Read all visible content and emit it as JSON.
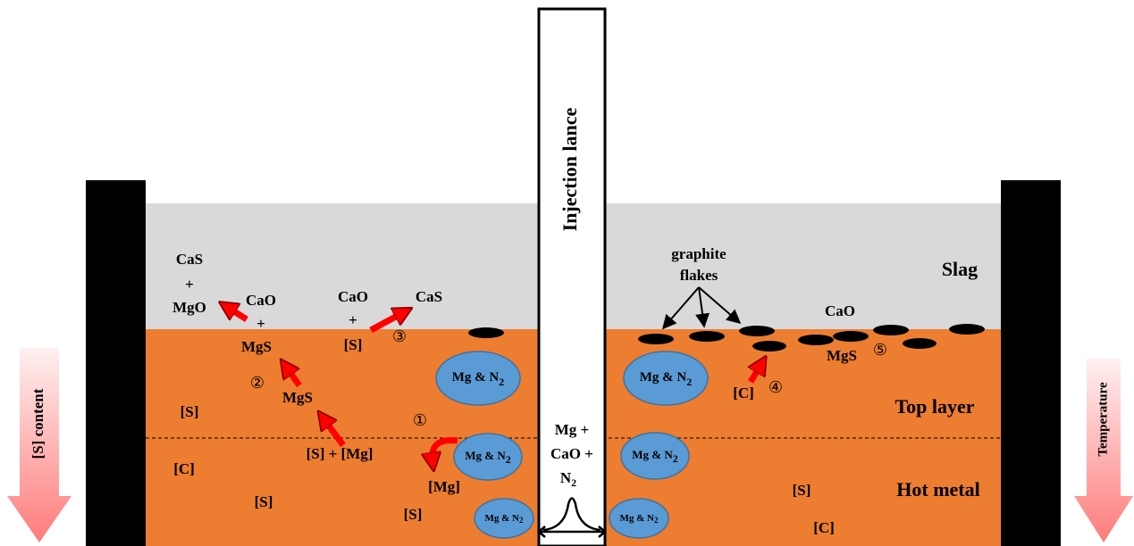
{
  "lance": {
    "title": "Injection lance",
    "feed": [
      "Mg +",
      "CaO +"
    ],
    "gas": {
      "text": "N",
      "sub": "2"
    }
  },
  "zones": [
    "Slag",
    "Top layer",
    "Hot metal"
  ],
  "gradients": [
    "[S] content",
    "Temperature"
  ],
  "graphite": [
    "graphite",
    "flakes"
  ],
  "steps": [
    "①",
    "②",
    "③",
    "④",
    "⑤"
  ],
  "labels": [
    "CaS",
    "+",
    "MgO",
    "CaO",
    "+",
    "MgS",
    "MgS",
    "[S] + [Mg]",
    "[Mg]",
    "CaO",
    "+",
    "[S]",
    "CaS",
    "[S]",
    "[C]",
    "[S]",
    "[S]",
    "CaO",
    "MgS",
    "[C]",
    "[S]",
    "[C]"
  ],
  "bubbles": [
    {
      "text": "Mg & N",
      "sub": "2"
    },
    {
      "text": "Mg & N",
      "sub": "2"
    },
    {
      "text": "Mg & N",
      "sub": "2"
    },
    {
      "text": "Mg & N",
      "sub": "2"
    },
    {
      "text": "Mg & N",
      "sub": "2"
    },
    {
      "text": "Mg & N",
      "sub": "2"
    }
  ]
}
